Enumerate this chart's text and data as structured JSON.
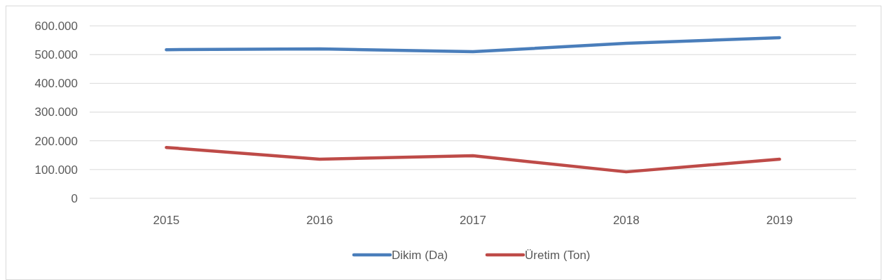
{
  "chart_data": {
    "type": "line",
    "categories": [
      "2015",
      "2016",
      "2017",
      "2018",
      "2019"
    ],
    "series": [
      {
        "name": "Dikim (Da)",
        "color": "#4a7ebb",
        "values": [
          517000,
          520000,
          510000,
          539000,
          559000
        ]
      },
      {
        "name": "Üretim (Ton)",
        "color": "#be4b48",
        "values": [
          177000,
          136000,
          148000,
          92000,
          136000
        ]
      }
    ],
    "ylim": [
      0,
      600000
    ],
    "yticks": [
      {
        "value": 0,
        "label": "0"
      },
      {
        "value": 100000,
        "label": "100.000"
      },
      {
        "value": 200000,
        "label": "200.000"
      },
      {
        "value": 300000,
        "label": "300.000"
      },
      {
        "value": 400000,
        "label": "400.000"
      },
      {
        "value": 500000,
        "label": "500.000"
      },
      {
        "value": 600000,
        "label": "600.000"
      }
    ],
    "grid": "y",
    "legend": "bottom",
    "marker": "none",
    "line_style": "solid"
  }
}
